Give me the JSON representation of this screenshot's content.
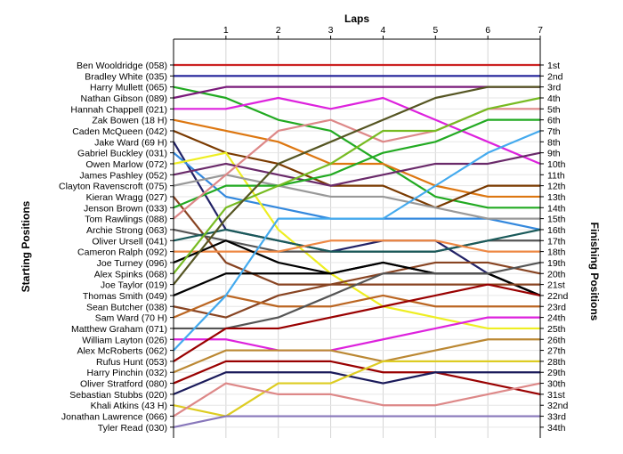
{
  "chart_data": {
    "type": "line",
    "title": "",
    "xlabel": "Laps",
    "ylabel_left": "Starting Positions",
    "ylabel_right": "Finishing Positions",
    "x": [
      0,
      1,
      2,
      3,
      4,
      5,
      6,
      7
    ],
    "x_tick_labels": [
      "1",
      "2",
      "3",
      "4",
      "5",
      "6",
      "7"
    ],
    "starting_labels": [
      "Ben Wooldridge (058)",
      "Bradley White (035)",
      "Harry Mullett (065)",
      "Nathan Gibson (089)",
      "Hannah Chappell (021)",
      "Zak Bowen (18 H)",
      "Caden McQueen (042)",
      "Jake Ward (69 H)",
      "Gabriel Buckley (031)",
      "Owen Marlow (072)",
      "James Pashley (052)",
      "Clayton Ravenscroft (075)",
      "Kieran Wragg (027)",
      "Jenson Brown (033)",
      "Tom Rawlings (088)",
      "Archie Strong (063)",
      "Oliver Ursell (041)",
      "Cameron Ralph (092)",
      "Joe Turney (096)",
      "Alex Spinks (068)",
      "Joe Taylor (019)",
      "Thomas Smith (049)",
      "Sean Butcher (038)",
      "Sam Ward (70 H)",
      "Matthew Graham (071)",
      "William Layton (026)",
      "Alex McRoberts (062)",
      "Rufus Hunt (053)",
      "Harry Pinchin (032)",
      "Oliver Stratford (080)",
      "Sebastian Stubbs (020)",
      "Khali Atkins (43 H)",
      "Jonathan Lawrence (066)",
      "Tyler Read (030)"
    ],
    "finishing_labels": [
      "1st",
      "2nd",
      "3rd",
      "4th",
      "5th",
      "6th",
      "7th",
      "8th",
      "9th",
      "10th",
      "11th",
      "12th",
      "13th",
      "14th",
      "15th",
      "16th",
      "17th",
      "18th",
      "19th",
      "20th",
      "21st",
      "22nd",
      "23rd",
      "24th",
      "25th",
      "26th",
      "27th",
      "28th",
      "29th",
      "30th",
      "31st",
      "32nd",
      "33rd",
      "34th"
    ],
    "ylim": [
      1,
      34
    ],
    "series": [
      {
        "color": "#cc2222",
        "values": [
          1,
          1,
          1,
          1,
          1,
          1,
          1,
          1
        ]
      },
      {
        "color": "#22229a",
        "values": [
          2,
          2,
          2,
          2,
          2,
          2,
          2,
          2
        ]
      },
      {
        "color": "#22aa22",
        "values": [
          3,
          4,
          6,
          7,
          10,
          13,
          14,
          14
        ]
      },
      {
        "color": "#7a1a7a",
        "values": [
          4,
          3,
          3,
          3,
          3,
          3,
          3,
          3
        ]
      },
      {
        "color": "#dd22dd",
        "values": [
          5,
          5,
          4,
          5,
          4,
          6,
          8,
          10
        ]
      },
      {
        "color": "#dd7711",
        "values": [
          6,
          7,
          8,
          10,
          10,
          12,
          13,
          13
        ]
      },
      {
        "color": "#7a3a00",
        "values": [
          7,
          9,
          10,
          12,
          12,
          14,
          12,
          12
        ]
      },
      {
        "color": "#222266",
        "values": [
          8,
          16,
          17,
          18,
          17,
          17,
          20,
          22
        ]
      },
      {
        "color": "#3388dd",
        "values": [
          9,
          13,
          14,
          15,
          15,
          15,
          15,
          16
        ]
      },
      {
        "color": "#eeee22",
        "values": [
          10,
          9,
          16,
          20,
          23,
          24,
          25,
          25
        ]
      },
      {
        "color": "#6a2a6a",
        "values": [
          11,
          10,
          11,
          12,
          11,
          10,
          10,
          9
        ]
      },
      {
        "color": "#999999",
        "values": [
          12,
          11,
          12,
          13,
          13,
          14,
          15,
          15
        ]
      },
      {
        "color": "#884422",
        "values": [
          13,
          19,
          21,
          21,
          20,
          19,
          19,
          20
        ]
      },
      {
        "color": "#22aa22",
        "values": [
          14,
          12,
          12,
          11,
          9,
          8,
          6,
          6
        ]
      },
      {
        "color": "#dd8888",
        "values": [
          15,
          11,
          7,
          6,
          8,
          7,
          5,
          5
        ]
      },
      {
        "color": "#555555",
        "values": [
          16,
          17,
          18,
          18,
          18,
          18,
          17,
          17
        ]
      },
      {
        "color": "#1a5a5a",
        "values": [
          17,
          16,
          17,
          18,
          18,
          18,
          17,
          16
        ]
      },
      {
        "color": "#ee8844",
        "values": [
          18,
          18,
          18,
          17,
          17,
          17,
          18,
          18
        ]
      },
      {
        "color": "#000000",
        "values": [
          19,
          17,
          19,
          20,
          19,
          20,
          20,
          22
        ]
      },
      {
        "color": "#77bb22",
        "values": [
          20,
          14,
          12,
          10,
          7,
          7,
          5,
          4
        ]
      },
      {
        "color": "#555522",
        "values": [
          21,
          15,
          10,
          8,
          6,
          4,
          3,
          3
        ]
      },
      {
        "color": "#000000",
        "values": [
          22,
          20,
          20,
          20,
          19,
          20,
          20,
          22
        ]
      },
      {
        "color": "#884422",
        "values": [
          23,
          24,
          22,
          21,
          21,
          21,
          21,
          21
        ]
      },
      {
        "color": "#bb6622",
        "values": [
          24,
          22,
          23,
          23,
          22,
          23,
          23,
          23
        ]
      },
      {
        "color": "#555555",
        "values": [
          25,
          25,
          24,
          22,
          20,
          20,
          20,
          19
        ]
      },
      {
        "color": "#dd22dd",
        "values": [
          26,
          26,
          27,
          27,
          26,
          25,
          24,
          24
        ]
      },
      {
        "color": "#44aaee",
        "values": [
          27,
          22,
          15,
          15,
          15,
          12,
          9,
          7
        ]
      },
      {
        "color": "#990000",
        "values": [
          28,
          25,
          25,
          24,
          23,
          22,
          21,
          22
        ]
      },
      {
        "color": "#bb8833",
        "values": [
          29,
          27,
          27,
          27,
          28,
          27,
          26,
          26
        ]
      },
      {
        "color": "#990000",
        "values": [
          30,
          28,
          28,
          28,
          29,
          29,
          30,
          31
        ]
      },
      {
        "color": "#1a1a5a",
        "values": [
          31,
          29,
          29,
          29,
          30,
          29,
          29,
          29
        ]
      },
      {
        "color": "#ddcc22",
        "values": [
          32,
          33,
          30,
          30,
          28,
          28,
          28,
          28
        ]
      },
      {
        "color": "#dd8888",
        "values": [
          33,
          30,
          31,
          31,
          32,
          32,
          31,
          30
        ]
      },
      {
        "color": "#8877bb",
        "values": [
          34,
          33,
          33,
          33,
          33,
          33,
          33,
          33
        ]
      }
    ],
    "grid": true
  }
}
